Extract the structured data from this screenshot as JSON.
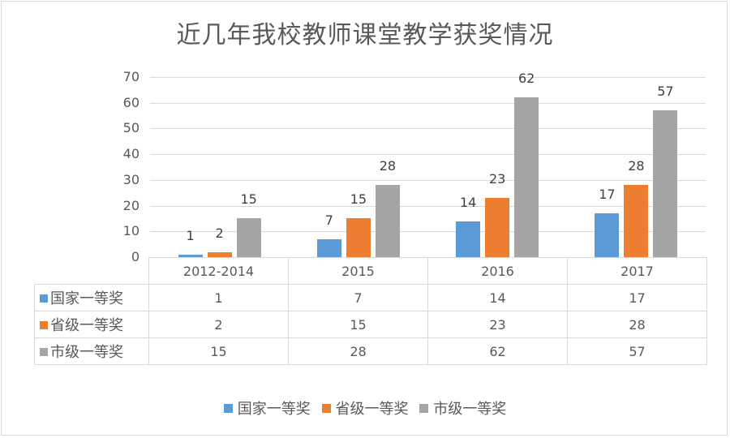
{
  "chart_data": {
    "type": "bar",
    "title": "近几年我校教师课堂教学获奖情况",
    "xlabel": "",
    "ylabel": "",
    "ylim": [
      0,
      70
    ],
    "yticks": [
      0,
      10,
      20,
      30,
      40,
      50,
      60,
      70
    ],
    "grid": true,
    "legend_position": "bottom",
    "data_table": true,
    "categories": [
      "2012-2014",
      "2015",
      "2016",
      "2017"
    ],
    "series": [
      {
        "name": "国家一等奖",
        "color": "#5b9bd5",
        "values": [
          1,
          7,
          14,
          17
        ]
      },
      {
        "name": "省级一等奖",
        "color": "#ed7d31",
        "values": [
          2,
          15,
          23,
          28
        ]
      },
      {
        "name": "市级一等奖",
        "color": "#a5a5a5",
        "values": [
          15,
          28,
          62,
          57
        ]
      }
    ]
  }
}
